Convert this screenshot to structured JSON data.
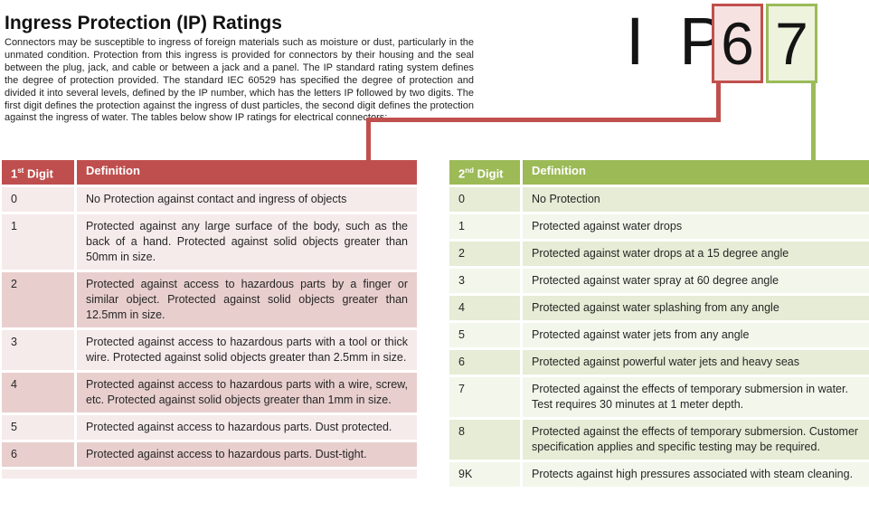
{
  "page": {
    "title": "Ingress Protection (IP) Ratings",
    "intro": "Connectors may be susceptible to ingress of foreign materials such as moisture or dust, particularly in the unmated condition. Protection from this ingress is provided for connectors by their housing and the seal between the plug, jack, and cable or between a jack and a panel. The IP standard rating system defines the degree of protection provided. The standard IEC 60529 has specified the degree of protection and divided it into several levels, defined by the IP number, which has the letters IP followed by two digits. The first digit defines the protection against the ingress of dust particles, the second digit defines the protection against the ingress of water. The tables below show IP ratings for electrical connectors:"
  },
  "ip_graphic": {
    "prefix": "I P",
    "first_digit": "6",
    "second_digit": "7"
  },
  "colors": {
    "red_accent": "#c0504d",
    "green_accent": "#9bbb59"
  },
  "first_digit_table": {
    "header": {
      "digit_num": "1",
      "digit_sup": "st",
      "digit_word": " Digit",
      "definition": "Definition"
    },
    "rows": [
      {
        "digit": "0",
        "definition": "No Protection against contact and ingress of objects"
      },
      {
        "digit": "1",
        "definition": "Protected against any large surface of the body, such as the back of a hand. Protected against solid objects greater than 50mm in size."
      },
      {
        "digit": "2",
        "definition": "Protected against access to hazardous parts by a finger or similar object. Protected against solid objects greater than 12.5mm in size."
      },
      {
        "digit": "3",
        "definition": "Protected against access to hazardous parts with a tool or thick wire. Protected against solid objects greater than 2.5mm in size."
      },
      {
        "digit": "4",
        "definition": "Protected against access to hazardous parts with a wire, screw, etc. Protected against solid objects greater than 1mm in size."
      },
      {
        "digit": "5",
        "definition": "Protected against access to hazardous parts. Dust protected."
      },
      {
        "digit": "6",
        "definition": "Protected against access to hazardous parts. Dust-tight."
      }
    ]
  },
  "second_digit_table": {
    "header": {
      "digit_num": "2",
      "digit_sup": "nd",
      "digit_word": " Digit",
      "definition": "Definition"
    },
    "rows": [
      {
        "digit": "0",
        "definition": "No Protection"
      },
      {
        "digit": "1",
        "definition": "Protected against water drops"
      },
      {
        "digit": "2",
        "definition": "Protected against water drops at a 15 degree angle"
      },
      {
        "digit": "3",
        "definition": "Protected against water spray at 60 degree angle"
      },
      {
        "digit": "4",
        "definition": "Protected against water splashing from any angle"
      },
      {
        "digit": "5",
        "definition": "Protected against water jets from any angle"
      },
      {
        "digit": "6",
        "definition": "Protected against powerful water jets and heavy seas"
      },
      {
        "digit": "7",
        "definition": "Protected against the effects of temporary submersion in water. Test requires 30 minutes at 1 meter depth."
      },
      {
        "digit": "8",
        "definition": "Protected against the effects of temporary submersion. Customer specification applies and specific testing may be required."
      },
      {
        "digit": "9K",
        "definition": "Protects against high pressures associated with steam cleaning."
      }
    ]
  }
}
